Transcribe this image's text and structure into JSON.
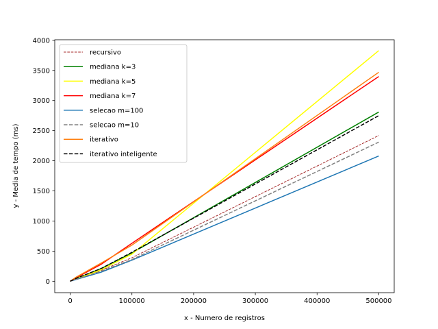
{
  "chart_data": {
    "type": "line",
    "xlabel": "x - Numero de registros",
    "ylabel": "y - Media de tempo (ms)",
    "xlim": [
      -25000,
      525000
    ],
    "ylim": [
      -190,
      4010
    ],
    "x_ticks": [
      0,
      100000,
      200000,
      300000,
      400000,
      500000
    ],
    "x_tick_labels": [
      "0",
      "100000",
      "200000",
      "300000",
      "400000",
      "500000"
    ],
    "y_ticks": [
      0,
      500,
      1000,
      1500,
      2000,
      2500,
      3000,
      3500,
      4000
    ],
    "y_tick_labels": [
      "0",
      "500",
      "1000",
      "1500",
      "2000",
      "2500",
      "3000",
      "3500",
      "4000"
    ],
    "grid": false,
    "legend_position": "upper-left",
    "x": [
      0,
      10000,
      50000,
      100000,
      500000
    ],
    "series": [
      {
        "name": "recursivo",
        "values": [
          0,
          40,
          180,
          390,
          2420
        ],
        "color": "#a52a2a",
        "dash": "dashed-thin"
      },
      {
        "name": "mediana k=3",
        "values": [
          0,
          45,
          210,
          470,
          2810
        ],
        "color": "#008000",
        "dash": "solid"
      },
      {
        "name": "mediana k=5",
        "values": [
          0,
          40,
          190,
          450,
          3830
        ],
        "color": "#ffff00",
        "dash": "solid"
      },
      {
        "name": "mediana k=7",
        "values": [
          0,
          60,
          280,
          630,
          3400
        ],
        "color": "#ff0000",
        "dash": "solid"
      },
      {
        "name": "selecao m=100",
        "values": [
          0,
          30,
          150,
          350,
          2080
        ],
        "color": "#1f77b4",
        "dash": "solid"
      },
      {
        "name": "selecao m=10",
        "values": [
          0,
          35,
          165,
          360,
          2310
        ],
        "color": "#808080",
        "dash": "dashed"
      },
      {
        "name": "iterativo",
        "values": [
          0,
          70,
          300,
          600,
          3470
        ],
        "color": "#ff7f0e",
        "dash": "solid"
      },
      {
        "name": "iterativo inteligente",
        "values": [
          0,
          50,
          210,
          480,
          2750
        ],
        "color": "#000000",
        "dash": "dashed"
      }
    ]
  }
}
